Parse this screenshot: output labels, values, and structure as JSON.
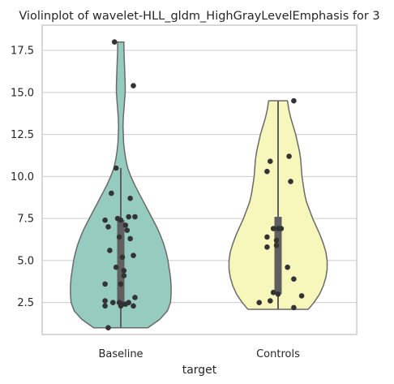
{
  "chart_data": {
    "type": "violin",
    "title": "Violinplot of wavelet-HLL_gldm_HighGrayLevelEmphasis for 3",
    "xlabel": "target",
    "ylabel": "",
    "categories": [
      "Baseline",
      "Controls"
    ],
    "ylim": [
      0.6,
      19.0
    ],
    "yticks": [
      2.5,
      5.0,
      7.5,
      10.0,
      12.5,
      15.0,
      17.5
    ],
    "ytick_labels": [
      "2.5",
      "5.0",
      "7.5",
      "10.0",
      "12.5",
      "15.0",
      "17.5"
    ],
    "grid": true,
    "colors": {
      "Baseline": "#96cbc0",
      "Controls": "#f7f7bb",
      "outline": "#6a6a6a",
      "box": "#5f5f5f",
      "point": "#333333"
    },
    "series": [
      {
        "category": "Baseline",
        "range": [
          1.0,
          18.0
        ],
        "quartiles": [
          2.4,
          7.4
        ],
        "median": 4.6,
        "whiskers": [
          1.0,
          10.5
        ],
        "density": [
          [
            1.0,
            0.43
          ],
          [
            1.5,
            0.62
          ],
          [
            2.0,
            0.74
          ],
          [
            2.5,
            0.79
          ],
          [
            3.0,
            0.8
          ],
          [
            3.5,
            0.8
          ],
          [
            4.0,
            0.79
          ],
          [
            4.5,
            0.77
          ],
          [
            5.0,
            0.75
          ],
          [
            5.5,
            0.72
          ],
          [
            6.0,
            0.68
          ],
          [
            6.5,
            0.63
          ],
          [
            7.0,
            0.57
          ],
          [
            7.5,
            0.5
          ],
          [
            8.0,
            0.43
          ],
          [
            8.5,
            0.36
          ],
          [
            9.0,
            0.29
          ],
          [
            9.5,
            0.22
          ],
          [
            10.0,
            0.16
          ],
          [
            10.5,
            0.11
          ],
          [
            11.0,
            0.08
          ],
          [
            11.5,
            0.06
          ],
          [
            12.0,
            0.045
          ],
          [
            12.5,
            0.04
          ],
          [
            13.0,
            0.035
          ],
          [
            13.5,
            0.04
          ],
          [
            14.0,
            0.05
          ],
          [
            14.5,
            0.06
          ],
          [
            15.0,
            0.07
          ],
          [
            15.5,
            0.07
          ],
          [
            16.0,
            0.065
          ],
          [
            16.5,
            0.06
          ],
          [
            17.0,
            0.055
          ],
          [
            17.5,
            0.05
          ],
          [
            18.0,
            0.05
          ]
        ],
        "points": [
          [
            -0.04,
            18.0
          ],
          [
            0.08,
            15.4
          ],
          [
            -0.03,
            10.5
          ],
          [
            -0.06,
            9.0
          ],
          [
            0.06,
            8.7
          ],
          [
            -0.1,
            7.4
          ],
          [
            -0.02,
            7.5
          ],
          [
            0.0,
            7.4
          ],
          [
            0.05,
            7.6
          ],
          [
            0.09,
            7.6
          ],
          [
            -0.08,
            7.0
          ],
          [
            0.03,
            7.1
          ],
          [
            0.04,
            6.8
          ],
          [
            0.06,
            6.3
          ],
          [
            -0.01,
            6.4
          ],
          [
            -0.07,
            5.6
          ],
          [
            0.08,
            5.3
          ],
          [
            0.01,
            5.2
          ],
          [
            -0.03,
            4.6
          ],
          [
            0.02,
            4.4
          ],
          [
            0.02,
            4.1
          ],
          [
            -0.1,
            3.6
          ],
          [
            0.0,
            3.6
          ],
          [
            0.09,
            2.8
          ],
          [
            -0.1,
            2.6
          ],
          [
            -0.05,
            2.5
          ],
          [
            -0.01,
            2.5
          ],
          [
            0.03,
            2.4
          ],
          [
            0.08,
            2.3
          ],
          [
            -0.1,
            2.3
          ],
          [
            0.01,
            2.4
          ],
          [
            0.05,
            2.5
          ],
          [
            0.0,
            2.3
          ],
          [
            -0.08,
            1.0
          ]
        ]
      },
      {
        "category": "Controls",
        "range": [
          2.1,
          14.5
        ],
        "quartiles": [
          3.0,
          7.6
        ],
        "median": 6.9,
        "whiskers": [
          2.1,
          14.5
        ],
        "density": [
          [
            2.1,
            0.48
          ],
          [
            2.5,
            0.57
          ],
          [
            3.0,
            0.66
          ],
          [
            3.5,
            0.72
          ],
          [
            4.0,
            0.76
          ],
          [
            4.5,
            0.78
          ],
          [
            5.0,
            0.78
          ],
          [
            5.5,
            0.76
          ],
          [
            6.0,
            0.72
          ],
          [
            6.5,
            0.67
          ],
          [
            7.0,
            0.61
          ],
          [
            7.5,
            0.55
          ],
          [
            8.0,
            0.5
          ],
          [
            8.5,
            0.45
          ],
          [
            9.0,
            0.42
          ],
          [
            9.5,
            0.4
          ],
          [
            10.0,
            0.38
          ],
          [
            10.5,
            0.37
          ],
          [
            11.0,
            0.36
          ],
          [
            11.5,
            0.34
          ],
          [
            12.0,
            0.31
          ],
          [
            12.5,
            0.28
          ],
          [
            13.0,
            0.24
          ],
          [
            13.5,
            0.2
          ],
          [
            14.0,
            0.17
          ],
          [
            14.5,
            0.15
          ]
        ],
        "points": [
          [
            0.1,
            14.5
          ],
          [
            0.07,
            11.2
          ],
          [
            -0.05,
            10.9
          ],
          [
            -0.07,
            10.3
          ],
          [
            0.08,
            9.7
          ],
          [
            -0.03,
            6.9
          ],
          [
            0.0,
            6.9
          ],
          [
            0.02,
            6.9
          ],
          [
            -0.07,
            6.4
          ],
          [
            -0.01,
            6.2
          ],
          [
            -0.07,
            5.8
          ],
          [
            -0.01,
            5.9
          ],
          [
            0.06,
            4.6
          ],
          [
            0.1,
            3.9
          ],
          [
            -0.03,
            3.1
          ],
          [
            0.0,
            3.0
          ],
          [
            0.15,
            2.9
          ],
          [
            -0.05,
            2.6
          ],
          [
            -0.12,
            2.5
          ],
          [
            0.1,
            2.2
          ]
        ]
      }
    ]
  }
}
